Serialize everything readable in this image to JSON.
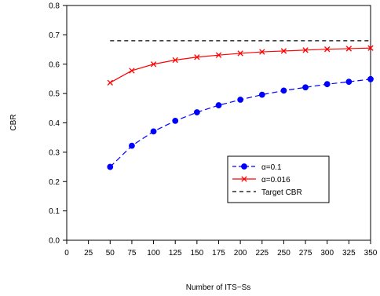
{
  "chart_data": {
    "type": "line",
    "title": "",
    "xlabel": "Number of ITS−Ss",
    "ylabel": "CBR",
    "xlim": [
      0,
      350
    ],
    "ylim": [
      0.0,
      0.8
    ],
    "x_ticks": [
      "0",
      "25",
      "50",
      "75",
      "100",
      "125",
      "150",
      "175",
      "200",
      "225",
      "250",
      "275",
      "300",
      "325",
      "350"
    ],
    "y_ticks": [
      "0.0",
      "0.1",
      "0.2",
      "0.3",
      "0.4",
      "0.5",
      "0.6",
      "0.7",
      "0.8"
    ],
    "grid": false,
    "legend_position": "center-right",
    "series": [
      {
        "name": "α=0.1",
        "color": "#0000ff",
        "line_style": "dashed",
        "marker": "filled-circle",
        "x": [
          50,
          75,
          100,
          125,
          150,
          175,
          200,
          225,
          250,
          275,
          300,
          325,
          350
        ],
        "y": [
          0.25,
          0.322,
          0.371,
          0.407,
          0.436,
          0.46,
          0.479,
          0.496,
          0.51,
          0.521,
          0.532,
          0.54,
          0.549
        ]
      },
      {
        "name": "α=0.016",
        "color": "#ff0000",
        "line_style": "solid",
        "marker": "x",
        "x": [
          50,
          75,
          100,
          125,
          150,
          175,
          200,
          225,
          250,
          275,
          300,
          325,
          350
        ],
        "y": [
          0.537,
          0.578,
          0.6,
          0.614,
          0.624,
          0.631,
          0.637,
          0.642,
          0.645,
          0.648,
          0.651,
          0.653,
          0.655
        ]
      },
      {
        "name": "Target CBR",
        "color": "#000000",
        "line_style": "dashed",
        "marker": "none",
        "x": [
          50,
          350
        ],
        "y": [
          0.68,
          0.68
        ]
      }
    ]
  }
}
